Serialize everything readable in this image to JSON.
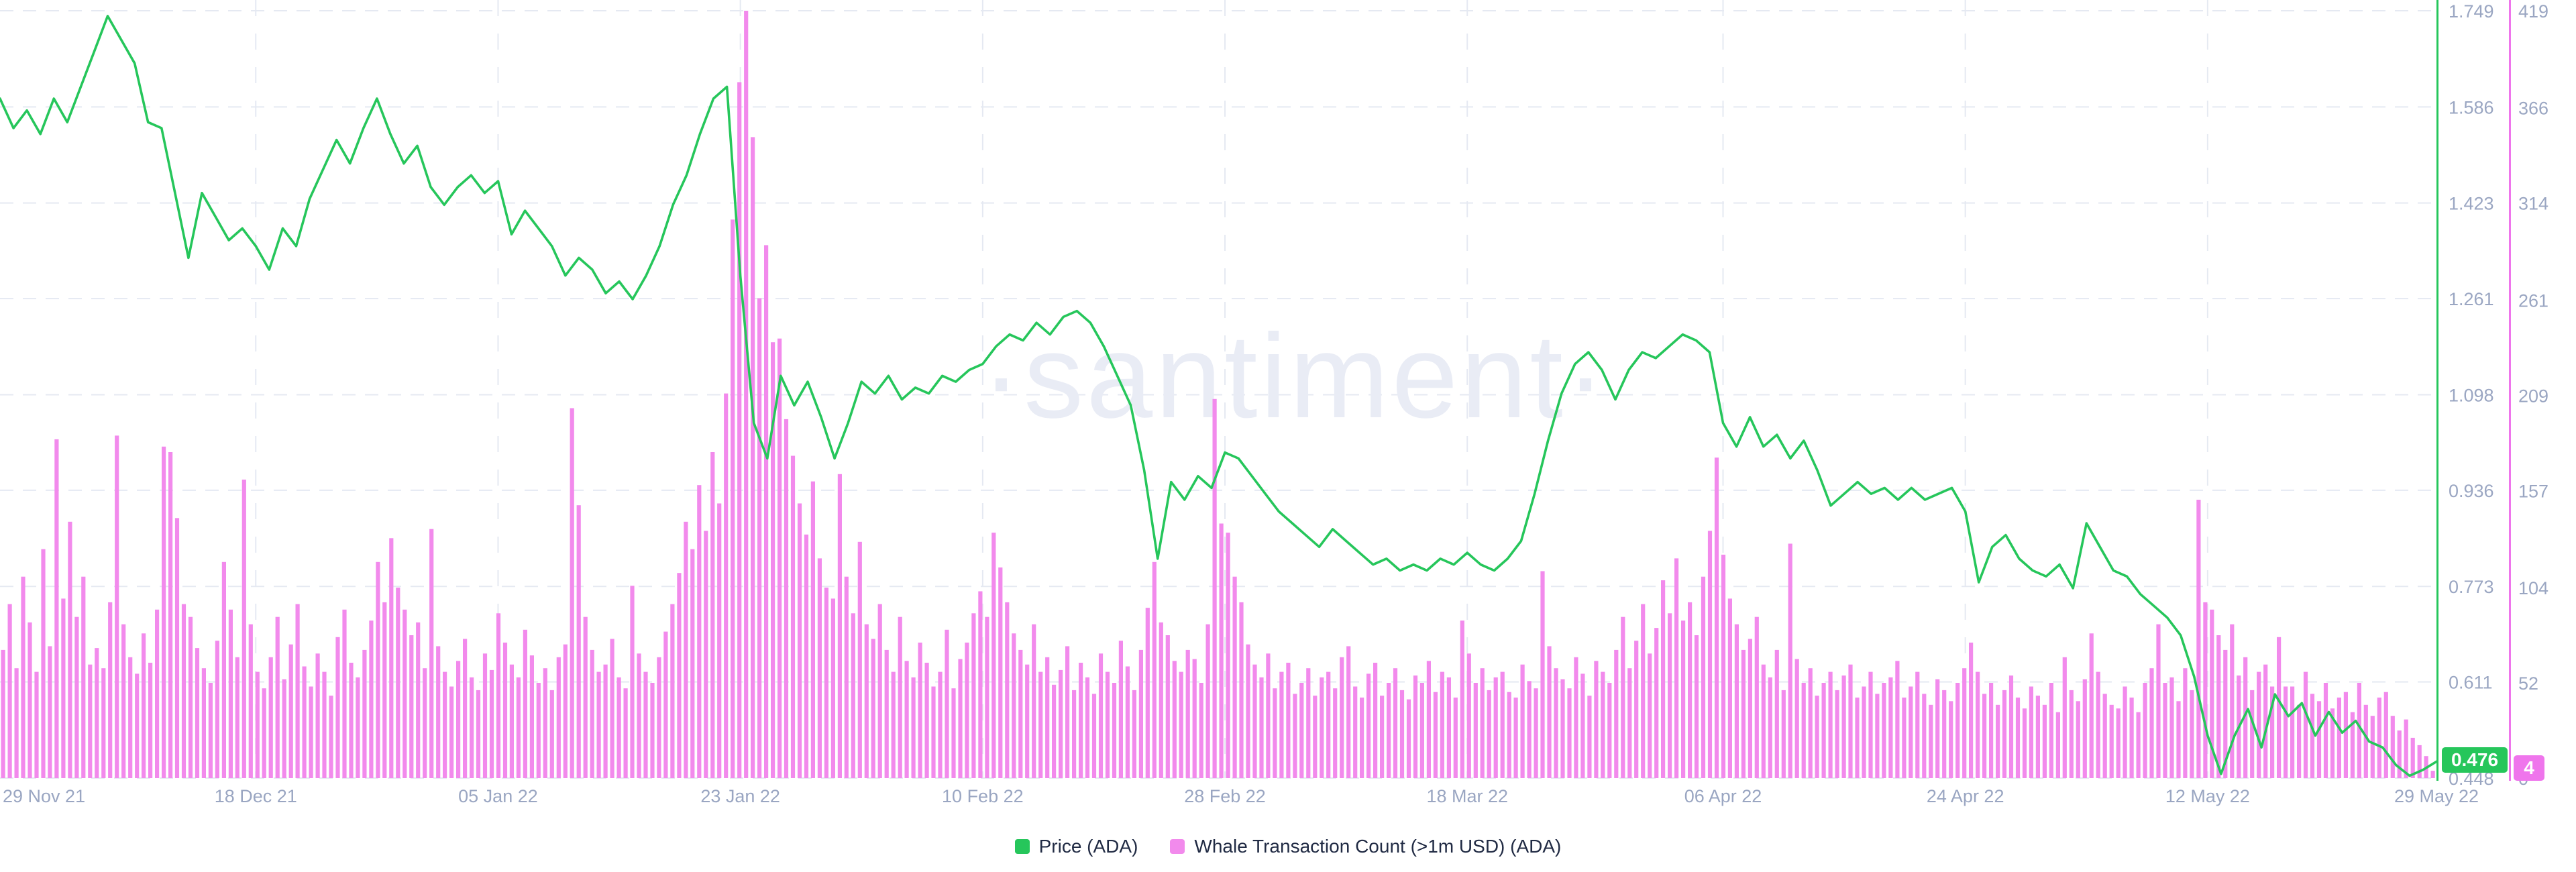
{
  "watermark": "·santiment·",
  "colors": {
    "price_green": "#26C65B",
    "whale_bar_pink": "#F28AEC",
    "whale_axis_pink": "#EF75EC",
    "grid": "#E5E9F2",
    "axis_text": "#9AA6C2",
    "legend_text": "#212B44",
    "watermark_gray": "#E9ECF5",
    "background": "#FFFFFF"
  },
  "badges": {
    "price_current": "0.476",
    "whale_current": "4"
  },
  "legend": {
    "price_label": "Price (ADA)",
    "whale_label": "Whale Transaction Count (>1m USD) (ADA)"
  },
  "chart_data": {
    "type": "mixed",
    "title": "",
    "xlabel": "",
    "ylabel_right_inner": "Price (ADA)",
    "ylabel_right_outer": "Whale Transaction Count",
    "grid": {
      "style": "dashed",
      "on": true
    },
    "legend_position": "bottom-center",
    "x_total_days": 181,
    "x_ticks": [
      {
        "label": "29 Nov 21",
        "day": 0
      },
      {
        "label": "18 Dec 21",
        "day": 19
      },
      {
        "label": "05 Jan 22",
        "day": 37
      },
      {
        "label": "23 Jan 22",
        "day": 55
      },
      {
        "label": "10 Feb 22",
        "day": 73
      },
      {
        "label": "28 Feb 22",
        "day": 91
      },
      {
        "label": "18 Mar 22",
        "day": 109
      },
      {
        "label": "06 Apr 22",
        "day": 128
      },
      {
        "label": "24 Apr 22",
        "day": 146
      },
      {
        "label": "12 May 22",
        "day": 164
      },
      {
        "label": "29 May 22",
        "day": 181
      }
    ],
    "price_axis": {
      "min": 0.448,
      "max": 1.749,
      "ticks": [
        1.749,
        1.586,
        1.423,
        1.261,
        1.098,
        0.936,
        0.773,
        0.611,
        0.448
      ],
      "current": 0.476
    },
    "whale_axis": {
      "min": 0,
      "max": 419,
      "ticks": [
        419,
        366,
        314,
        261,
        209,
        157,
        104,
        52,
        0
      ],
      "current": 4
    },
    "series": [
      {
        "name": "Price (ADA)",
        "type": "line",
        "axis": "price",
        "color": "#26C65B",
        "sampling": "daily",
        "values": [
          1.6,
          1.55,
          1.58,
          1.54,
          1.6,
          1.56,
          1.62,
          1.68,
          1.74,
          1.7,
          1.66,
          1.56,
          1.55,
          1.44,
          1.33,
          1.44,
          1.4,
          1.36,
          1.38,
          1.35,
          1.31,
          1.38,
          1.35,
          1.43,
          1.48,
          1.53,
          1.49,
          1.55,
          1.6,
          1.54,
          1.49,
          1.52,
          1.45,
          1.42,
          1.45,
          1.47,
          1.44,
          1.46,
          1.37,
          1.41,
          1.38,
          1.35,
          1.3,
          1.33,
          1.31,
          1.27,
          1.29,
          1.26,
          1.3,
          1.35,
          1.42,
          1.47,
          1.54,
          1.6,
          1.62,
          1.3,
          1.05,
          0.99,
          1.13,
          1.08,
          1.12,
          1.06,
          0.99,
          1.05,
          1.12,
          1.1,
          1.13,
          1.09,
          1.11,
          1.1,
          1.13,
          1.12,
          1.14,
          1.15,
          1.18,
          1.2,
          1.19,
          1.22,
          1.2,
          1.23,
          1.24,
          1.22,
          1.18,
          1.13,
          1.08,
          0.97,
          0.82,
          0.95,
          0.92,
          0.96,
          0.94,
          1.0,
          0.99,
          0.96,
          0.93,
          0.9,
          0.88,
          0.86,
          0.84,
          0.87,
          0.85,
          0.83,
          0.81,
          0.82,
          0.8,
          0.81,
          0.8,
          0.82,
          0.81,
          0.83,
          0.81,
          0.8,
          0.82,
          0.85,
          0.93,
          1.02,
          1.1,
          1.15,
          1.17,
          1.14,
          1.09,
          1.14,
          1.17,
          1.16,
          1.18,
          1.2,
          1.19,
          1.17,
          1.05,
          1.01,
          1.06,
          1.01,
          1.03,
          0.99,
          1.02,
          0.97,
          0.91,
          0.93,
          0.95,
          0.93,
          0.94,
          0.92,
          0.94,
          0.92,
          0.93,
          0.94,
          0.9,
          0.78,
          0.84,
          0.86,
          0.82,
          0.8,
          0.79,
          0.81,
          0.77,
          0.88,
          0.84,
          0.8,
          0.79,
          0.76,
          0.74,
          0.72,
          0.69,
          0.62,
          0.52,
          0.455,
          0.52,
          0.565,
          0.5,
          0.59,
          0.553,
          0.575,
          0.52,
          0.56,
          0.525,
          0.545,
          0.51,
          0.5,
          0.47,
          0.452,
          0.462,
          0.476
        ]
      },
      {
        "name": "Whale Transaction Count (>1m USD) (ADA)",
        "type": "bar",
        "axis": "whale",
        "color": "#F28AEC",
        "sampling": "half-daily",
        "values": [
          70,
          95,
          60,
          110,
          85,
          58,
          125,
          72,
          185,
          98,
          140,
          88,
          110,
          62,
          71,
          60,
          96,
          187,
          84,
          66,
          57,
          79,
          63,
          92,
          181,
          178,
          142,
          95,
          88,
          71,
          60,
          52,
          75,
          118,
          92,
          66,
          163,
          84,
          58,
          49,
          66,
          88,
          54,
          73,
          95,
          61,
          50,
          68,
          58,
          45,
          77,
          92,
          63,
          55,
          70,
          86,
          118,
          96,
          131,
          104,
          92,
          78,
          85,
          60,
          136,
          72,
          58,
          50,
          64,
          76,
          55,
          48,
          68,
          59,
          90,
          74,
          62,
          55,
          81,
          67,
          52,
          60,
          48,
          66,
          73,
          202,
          149,
          88,
          70,
          58,
          62,
          76,
          55,
          49,
          105,
          68,
          58,
          52,
          66,
          80,
          95,
          112,
          140,
          125,
          160,
          135,
          178,
          150,
          210,
          305,
          380,
          419,
          350,
          262,
          291,
          238,
          240,
          196,
          176,
          150,
          133,
          162,
          120,
          104,
          98,
          166,
          110,
          90,
          129,
          84,
          76,
          95,
          70,
          58,
          88,
          64,
          55,
          74,
          63,
          50,
          58,
          81,
          49,
          65,
          74,
          90,
          102,
          88,
          134,
          115,
          96,
          79,
          70,
          62,
          84,
          58,
          66,
          51,
          59,
          72,
          48,
          63,
          55,
          46,
          68,
          58,
          52,
          75,
          61,
          48,
          70,
          93,
          118,
          85,
          78,
          64,
          58,
          70,
          65,
          52,
          84,
          207,
          139,
          134,
          110,
          96,
          73,
          62,
          55,
          68,
          49,
          58,
          63,
          46,
          52,
          60,
          45,
          55,
          58,
          49,
          66,
          72,
          50,
          44,
          57,
          63,
          45,
          52,
          60,
          48,
          43,
          56,
          52,
          64,
          47,
          58,
          55,
          44,
          86,
          68,
          52,
          60,
          48,
          55,
          58,
          47,
          44,
          62,
          53,
          49,
          113,
          72,
          60,
          54,
          49,
          66,
          57,
          45,
          64,
          58,
          52,
          70,
          88,
          60,
          75,
          95,
          68,
          82,
          108,
          90,
          120,
          86,
          96,
          78,
          110,
          135,
          175,
          122,
          98,
          84,
          70,
          76,
          88,
          62,
          55,
          70,
          48,
          128,
          65,
          52,
          60,
          45,
          52,
          58,
          48,
          56,
          62,
          44,
          50,
          58,
          46,
          52,
          55,
          64,
          44,
          50,
          58,
          46,
          40,
          54,
          48,
          42,
          52,
          60,
          74,
          58,
          46,
          52,
          40,
          48,
          56,
          44,
          38,
          50,
          45,
          40,
          52,
          36,
          66,
          48,
          42,
          54,
          79,
          58,
          46,
          40,
          38,
          50,
          44,
          36,
          52,
          60,
          84,
          52,
          55,
          42,
          60,
          48,
          152,
          96,
          92,
          78,
          70,
          84,
          56,
          66,
          48,
          58,
          62,
          50,
          77,
          50,
          50,
          40,
          58,
          46,
          42,
          52,
          38,
          44,
          47,
          36,
          52,
          40,
          34,
          44,
          47,
          34,
          26,
          32,
          22,
          18,
          12,
          4
        ]
      }
    ]
  }
}
